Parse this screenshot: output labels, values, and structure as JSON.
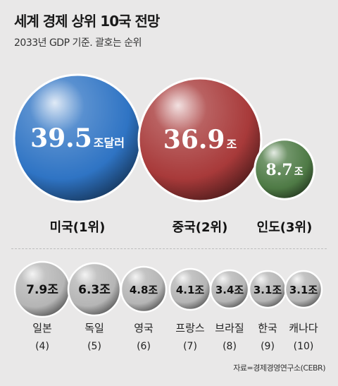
{
  "title": "세계 경제 상위 10국 전망",
  "subtitle": "2033년 GDP 기준. 괄호는 순위",
  "source": "자료=경제경영연구소(CEBR)",
  "chart_data": {
    "type": "bubble",
    "unit": "조",
    "top3": [
      {
        "country": "미국",
        "rank": 1,
        "value": 39.5,
        "value_label": "39.5",
        "unit_label": "조달러",
        "color": "#2f74c4",
        "label": "미국(1위)"
      },
      {
        "country": "중국",
        "rank": 2,
        "value": 36.9,
        "value_label": "36.9",
        "unit_label": "조",
        "color": "#a83a3a",
        "label": "중국(2위)"
      },
      {
        "country": "인도",
        "rank": 3,
        "value": 8.7,
        "value_label": "8.7",
        "unit_label": "조",
        "color": "#4e7a45",
        "label": "인도(3위)"
      }
    ],
    "others": [
      {
        "country": "일본",
        "rank": 4,
        "rank_label": "(4)",
        "value_label": "7.9조"
      },
      {
        "country": "독일",
        "rank": 5,
        "rank_label": "(5)",
        "value_label": "6.3조"
      },
      {
        "country": "영국",
        "rank": 6,
        "rank_label": "(6)",
        "value_label": "4.8조"
      },
      {
        "country": "프랑스",
        "rank": 7,
        "rank_label": "(7)",
        "value_label": "4.1조"
      },
      {
        "country": "브라질",
        "rank": 8,
        "rank_label": "(8)",
        "value_label": "3.4조"
      },
      {
        "country": "한국",
        "rank": 9,
        "rank_label": "(9)",
        "value_label": "3.1조"
      },
      {
        "country": "캐나다",
        "rank": 10,
        "rank_label": "(10)",
        "value_label": "3.1조"
      }
    ],
    "others_color": "#b5b5b5"
  }
}
